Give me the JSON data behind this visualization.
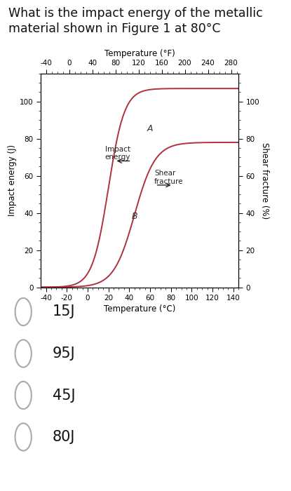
{
  "title_line1": "What is the impact energy of the metallic",
  "title_line2": "material shown in Figure 1 at 80°C",
  "title_fontsize": 12.5,
  "fig_bg": "#ffffff",
  "ax_bg": "#ffffff",
  "curve_color": "#b03040",
  "xlabel": "Temperature (°C)",
  "ylabel": "Impact energy (J)",
  "ylabel2": "Shear fracture (%)",
  "top_xlabel": "Temperature (°F)",
  "top_xticks_F": [
    -40,
    0,
    40,
    80,
    120,
    160,
    200,
    240,
    280
  ],
  "xlim": [
    -45,
    145
  ],
  "ylim": [
    0,
    115
  ],
  "ylim2": [
    0,
    115
  ],
  "xticks_C": [
    -40,
    -20,
    0,
    20,
    40,
    60,
    80,
    100,
    120,
    140
  ],
  "yticks_left": [
    0,
    20,
    40,
    60,
    80,
    100
  ],
  "yticks_right": [
    0,
    20,
    40,
    60,
    80,
    100
  ],
  "label_A": "A",
  "label_B": "B",
  "label_impact": "Impact\nenergy",
  "label_shear": "Shear\nfracture",
  "options": [
    "15J",
    "95J",
    "45J",
    "80J"
  ],
  "option_fontsize": 15,
  "tick_fontsize": 7.5,
  "axis_label_fontsize": 8.5
}
